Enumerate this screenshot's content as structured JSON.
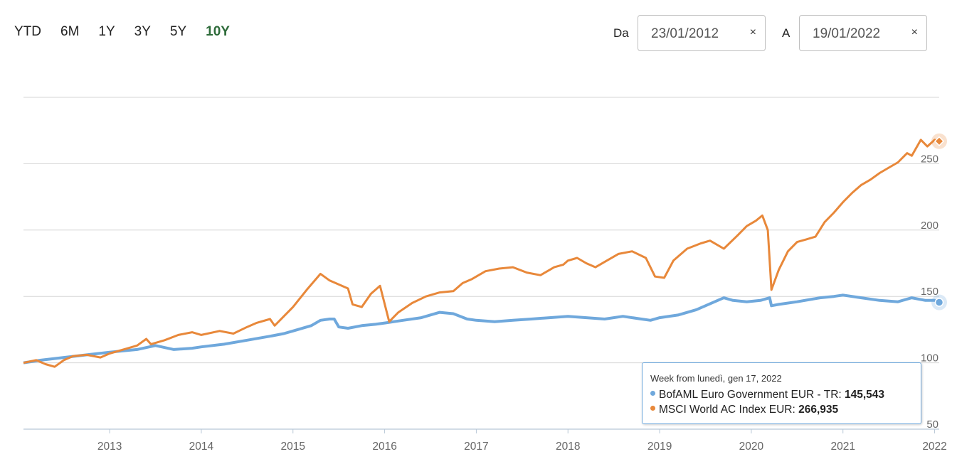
{
  "range_buttons": [
    {
      "label": "YTD",
      "active": false
    },
    {
      "label": "6M",
      "active": false
    },
    {
      "label": "1Y",
      "active": false
    },
    {
      "label": "3Y",
      "active": false
    },
    {
      "label": "5Y",
      "active": false
    },
    {
      "label": "10Y",
      "active": true
    }
  ],
  "date_from": {
    "label": "Da",
    "value": "23/01/2012",
    "clear": "×"
  },
  "date_to": {
    "label": "A",
    "value": "19/01/2022",
    "clear": "×"
  },
  "tooltip": {
    "header": "Week from lunedì, gen 17, 2022",
    "rows": [
      {
        "name": "BofAML Euro Government EUR - TR",
        "value": "145,543",
        "color": "#6fa8dc"
      },
      {
        "name": "MSCI World AC Index EUR",
        "value": "266,935",
        "color": "#e8883a"
      }
    ]
  },
  "chart_data": {
    "type": "line",
    "x_tick_labels": [
      "2013",
      "2014",
      "2015",
      "2016",
      "2017",
      "2018",
      "2019",
      "2020",
      "2021",
      "2022"
    ],
    "y_tick_labels": [
      "50",
      "100",
      "150",
      "200",
      "250"
    ],
    "ylim": [
      50,
      300
    ],
    "xlim": [
      2012.06,
      2022.05
    ],
    "grid": true,
    "series": [
      {
        "name": "BofAML Euro Government EUR - TR",
        "color": "#6fa8dc",
        "points": [
          [
            2012.06,
            100
          ],
          [
            2012.25,
            102
          ],
          [
            2012.5,
            104
          ],
          [
            2012.75,
            106
          ],
          [
            2013.0,
            108
          ],
          [
            2013.3,
            110
          ],
          [
            2013.5,
            113
          ],
          [
            2013.7,
            110
          ],
          [
            2013.9,
            111
          ],
          [
            2014.0,
            112
          ],
          [
            2014.25,
            114
          ],
          [
            2014.5,
            117
          ],
          [
            2014.75,
            120
          ],
          [
            2014.9,
            122
          ],
          [
            2015.0,
            124
          ],
          [
            2015.2,
            128
          ],
          [
            2015.3,
            132
          ],
          [
            2015.4,
            133
          ],
          [
            2015.45,
            133
          ],
          [
            2015.5,
            127
          ],
          [
            2015.6,
            126
          ],
          [
            2015.75,
            128
          ],
          [
            2015.9,
            129
          ],
          [
            2016.0,
            130
          ],
          [
            2016.2,
            132
          ],
          [
            2016.4,
            134
          ],
          [
            2016.6,
            138
          ],
          [
            2016.75,
            137
          ],
          [
            2016.9,
            133
          ],
          [
            2017.0,
            132
          ],
          [
            2017.2,
            131
          ],
          [
            2017.4,
            132
          ],
          [
            2017.6,
            133
          ],
          [
            2017.8,
            134
          ],
          [
            2018.0,
            135
          ],
          [
            2018.2,
            134
          ],
          [
            2018.4,
            133
          ],
          [
            2018.6,
            135
          ],
          [
            2018.8,
            133
          ],
          [
            2018.9,
            132
          ],
          [
            2019.0,
            134
          ],
          [
            2019.2,
            136
          ],
          [
            2019.4,
            140
          ],
          [
            2019.6,
            146
          ],
          [
            2019.7,
            149
          ],
          [
            2019.8,
            147
          ],
          [
            2019.95,
            146
          ],
          [
            2020.1,
            147
          ],
          [
            2020.2,
            149
          ],
          [
            2020.22,
            143
          ],
          [
            2020.3,
            144
          ],
          [
            2020.5,
            146
          ],
          [
            2020.75,
            149
          ],
          [
            2020.9,
            150
          ],
          [
            2021.0,
            151
          ],
          [
            2021.2,
            149
          ],
          [
            2021.4,
            147
          ],
          [
            2021.6,
            146
          ],
          [
            2021.75,
            149
          ],
          [
            2021.9,
            147
          ],
          [
            2022.0,
            147
          ],
          [
            2022.05,
            145.543
          ]
        ]
      },
      {
        "name": "MSCI World AC Index EUR",
        "color": "#e8883a",
        "points": [
          [
            2012.06,
            100
          ],
          [
            2012.2,
            102
          ],
          [
            2012.3,
            99
          ],
          [
            2012.4,
            97
          ],
          [
            2012.5,
            102
          ],
          [
            2012.6,
            105
          ],
          [
            2012.75,
            106
          ],
          [
            2012.9,
            104
          ],
          [
            2013.0,
            107
          ],
          [
            2013.2,
            111
          ],
          [
            2013.3,
            113
          ],
          [
            2013.4,
            118
          ],
          [
            2013.45,
            114
          ],
          [
            2013.6,
            117
          ],
          [
            2013.75,
            121
          ],
          [
            2013.9,
            123
          ],
          [
            2014.0,
            121
          ],
          [
            2014.2,
            124
          ],
          [
            2014.35,
            122
          ],
          [
            2014.5,
            127
          ],
          [
            2014.6,
            130
          ],
          [
            2014.75,
            133
          ],
          [
            2014.8,
            128
          ],
          [
            2014.9,
            135
          ],
          [
            2015.0,
            142
          ],
          [
            2015.15,
            155
          ],
          [
            2015.3,
            167
          ],
          [
            2015.4,
            162
          ],
          [
            2015.5,
            159
          ],
          [
            2015.6,
            156
          ],
          [
            2015.65,
            144
          ],
          [
            2015.75,
            142
          ],
          [
            2015.85,
            152
          ],
          [
            2015.95,
            158
          ],
          [
            2016.05,
            131
          ],
          [
            2016.15,
            138
          ],
          [
            2016.3,
            145
          ],
          [
            2016.45,
            150
          ],
          [
            2016.6,
            153
          ],
          [
            2016.75,
            154
          ],
          [
            2016.85,
            160
          ],
          [
            2016.95,
            163
          ],
          [
            2017.0,
            165
          ],
          [
            2017.1,
            169
          ],
          [
            2017.25,
            171
          ],
          [
            2017.4,
            172
          ],
          [
            2017.55,
            168
          ],
          [
            2017.7,
            166
          ],
          [
            2017.85,
            172
          ],
          [
            2017.95,
            174
          ],
          [
            2018.0,
            177
          ],
          [
            2018.1,
            179
          ],
          [
            2018.2,
            175
          ],
          [
            2018.3,
            172
          ],
          [
            2018.4,
            176
          ],
          [
            2018.55,
            182
          ],
          [
            2018.7,
            184
          ],
          [
            2018.85,
            179
          ],
          [
            2018.95,
            165
          ],
          [
            2019.05,
            164
          ],
          [
            2019.15,
            177
          ],
          [
            2019.3,
            186
          ],
          [
            2019.45,
            190
          ],
          [
            2019.55,
            192
          ],
          [
            2019.7,
            186
          ],
          [
            2019.85,
            196
          ],
          [
            2019.95,
            203
          ],
          [
            2020.05,
            207
          ],
          [
            2020.12,
            211
          ],
          [
            2020.18,
            200
          ],
          [
            2020.22,
            155
          ],
          [
            2020.3,
            170
          ],
          [
            2020.4,
            184
          ],
          [
            2020.5,
            191
          ],
          [
            2020.6,
            193
          ],
          [
            2020.7,
            195
          ],
          [
            2020.8,
            206
          ],
          [
            2020.9,
            213
          ],
          [
            2021.0,
            221
          ],
          [
            2021.1,
            228
          ],
          [
            2021.2,
            234
          ],
          [
            2021.3,
            238
          ],
          [
            2021.4,
            243
          ],
          [
            2021.5,
            247
          ],
          [
            2021.6,
            251
          ],
          [
            2021.7,
            258
          ],
          [
            2021.75,
            256
          ],
          [
            2021.85,
            268
          ],
          [
            2021.92,
            263
          ],
          [
            2022.0,
            268
          ],
          [
            2022.05,
            266.935
          ]
        ]
      }
    ]
  }
}
